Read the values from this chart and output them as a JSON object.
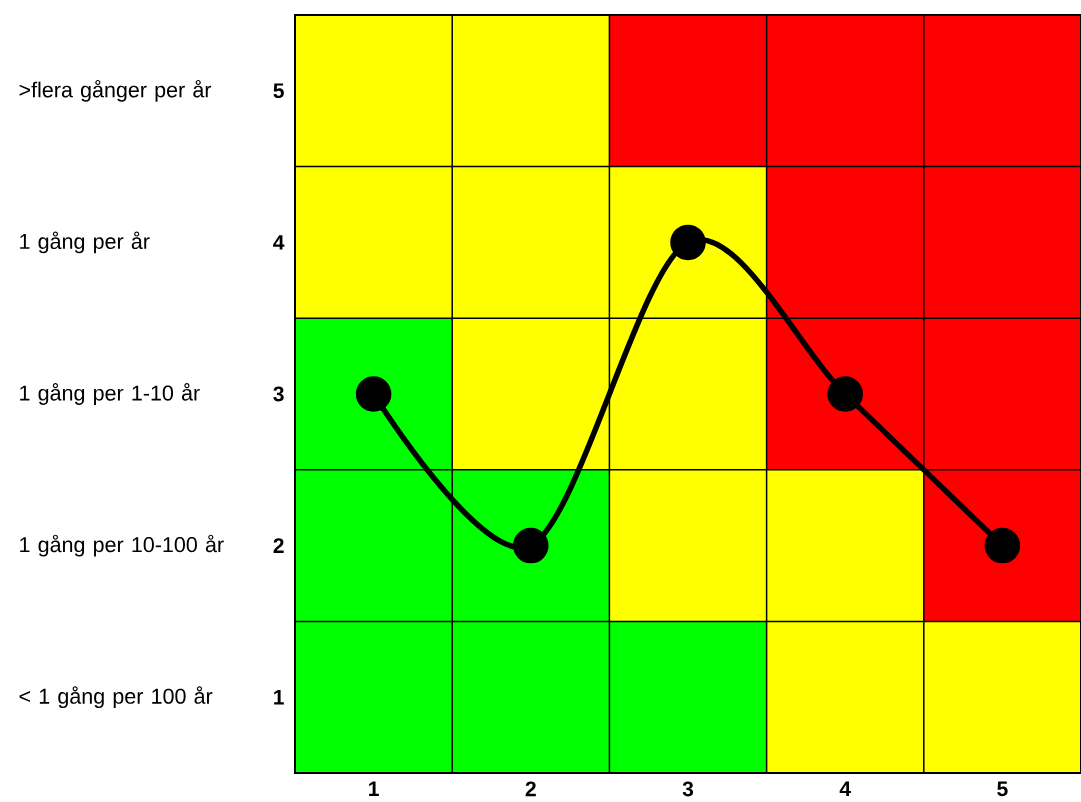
{
  "chart_data": {
    "type": "line",
    "x": [
      1,
      2,
      3,
      4,
      5
    ],
    "xlim": [
      0.5,
      5.5
    ],
    "ylim": [
      0.5,
      5.5
    ],
    "xticks": [
      1,
      2,
      3,
      4,
      5
    ],
    "yticks": [
      1,
      2,
      3,
      4,
      5
    ],
    "y2_categories": [
      ">flera gånger per år",
      "1 gång per år",
      "1 gång per 1-10 år",
      "1 gång per 10-100 år",
      "< 1 gång per 100 år"
    ],
    "series": [
      {
        "values": [
          3,
          2,
          4,
          3,
          2
        ],
        "color": "#000000"
      }
    ],
    "marker": "circle"
  }
}
